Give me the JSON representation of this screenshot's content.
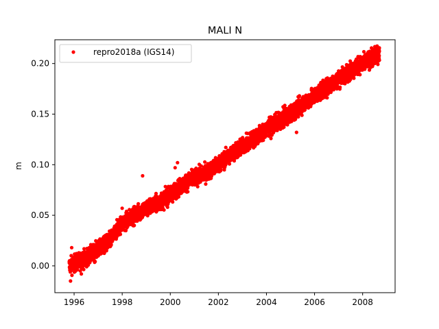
{
  "chart_data": {
    "type": "scatter",
    "title": "MALI N",
    "xlabel": "",
    "ylabel": "m",
    "xlim": [
      1995.2,
      2009.35
    ],
    "ylim": [
      -0.0265,
      0.2235
    ],
    "x_ticks": [
      1996,
      1998,
      2000,
      2002,
      2004,
      2006,
      2008
    ],
    "y_ticks": [
      0.0,
      0.05,
      0.1,
      0.15,
      0.2
    ],
    "y_tick_labels": [
      "0.00",
      "0.05",
      "0.10",
      "0.15",
      "0.20"
    ],
    "grid": false,
    "legend": {
      "position": "upper-left"
    },
    "series": [
      {
        "name": "repro2018a (IGS14)",
        "color": "#ff0000",
        "marker": "circle",
        "trend": [
          [
            1995.8,
            0.0
          ],
          [
            1996.5,
            0.008
          ],
          [
            1997.0,
            0.016
          ],
          [
            1997.5,
            0.025
          ],
          [
            1997.9,
            0.04
          ],
          [
            1998.5,
            0.05
          ],
          [
            1999.0,
            0.057
          ],
          [
            1999.5,
            0.062
          ],
          [
            2000.0,
            0.07
          ],
          [
            2000.5,
            0.08
          ],
          [
            2001.0,
            0.087
          ],
          [
            2001.5,
            0.092
          ],
          [
            2002.0,
            0.1
          ],
          [
            2002.5,
            0.11
          ],
          [
            2003.0,
            0.118
          ],
          [
            2003.5,
            0.126
          ],
          [
            2004.0,
            0.135
          ],
          [
            2004.5,
            0.143
          ],
          [
            2005.0,
            0.15
          ],
          [
            2005.5,
            0.16
          ],
          [
            2006.0,
            0.168
          ],
          [
            2006.5,
            0.176
          ],
          [
            2007.0,
            0.185
          ],
          [
            2007.5,
            0.193
          ],
          [
            2008.0,
            0.2
          ],
          [
            2008.7,
            0.21
          ]
        ],
        "start": 1995.8,
        "end": 2008.7,
        "noise": 0.004,
        "outliers": [
          [
            1995.85,
            -0.015
          ],
          [
            1995.9,
            0.018
          ],
          [
            1998.0,
            0.057
          ],
          [
            1998.85,
            0.089
          ],
          [
            2000.3,
            0.102
          ],
          [
            2005.25,
            0.132
          ],
          [
            1996.3,
            -0.008
          ],
          [
            2000.2,
            0.097
          ]
        ]
      }
    ]
  }
}
